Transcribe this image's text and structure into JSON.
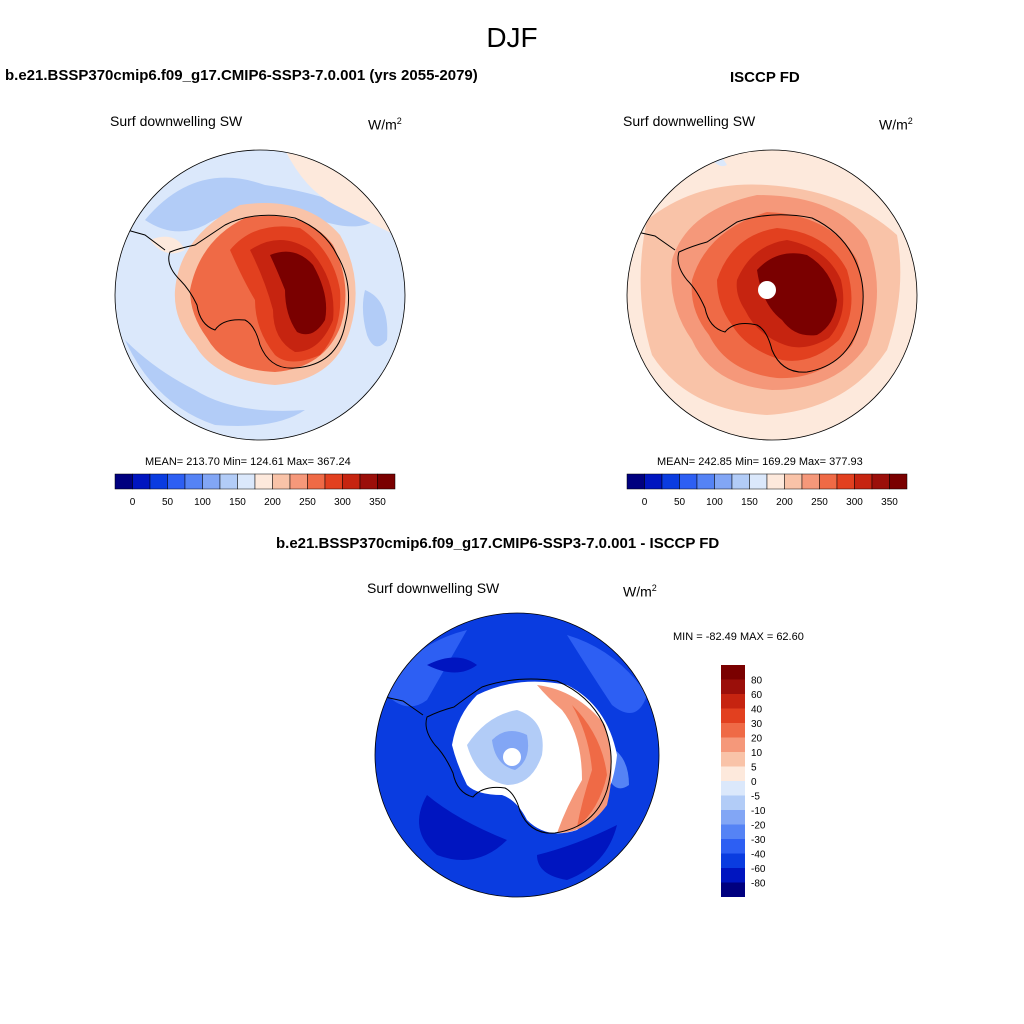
{
  "figure": {
    "title": "DJF"
  },
  "colors": {
    "scale": [
      "#00007f",
      "#0015c0",
      "#0a3ce0",
      "#2d5ff3",
      "#5583f5",
      "#82a6f5",
      "#b2ccf7",
      "#dbe8fb",
      "#fde9dc",
      "#f9c3a8",
      "#f5987a",
      "#ef6a46",
      "#e2401f",
      "#c62410",
      "#9b0f0a",
      "#7a0000"
    ]
  },
  "chart_data": [
    {
      "type": "map",
      "panel": "model",
      "title": "b.e21.BSSP370cmip6.f09_g17.CMIP6-SSP3-7.0.001 (yrs 2055-2079)",
      "variable": "Surf downwelling SW",
      "units_base": "W/m",
      "units_exp": "2",
      "stats_text": "MEAN= 213.70  Min= 124.61  Max= 367.24",
      "mean": 213.7,
      "min": 124.61,
      "max": 367.24,
      "colorbar_ticks": [
        "0",
        "50",
        "100",
        "150",
        "200",
        "250",
        "300",
        "350"
      ],
      "levels": [
        0,
        25,
        50,
        75,
        100,
        125,
        150,
        175,
        200,
        225,
        250,
        275,
        300,
        325,
        350
      ]
    },
    {
      "type": "map",
      "panel": "obs",
      "title": "ISCCP FD",
      "variable": "Surf downwelling SW",
      "units_base": "W/m",
      "units_exp": "2",
      "stats_text": "MEAN= 242.85  Min= 169.29  Max= 377.93",
      "mean": 242.85,
      "min": 169.29,
      "max": 377.93,
      "colorbar_ticks": [
        "0",
        "50",
        "100",
        "150",
        "200",
        "250",
        "300",
        "350"
      ],
      "levels": [
        0,
        25,
        50,
        75,
        100,
        125,
        150,
        175,
        200,
        225,
        250,
        275,
        300,
        325,
        350
      ]
    },
    {
      "type": "map",
      "panel": "difference",
      "title": "b.e21.BSSP370cmip6.f09_g17.CMIP6-SSP3-7.0.001 - ISCCP FD",
      "variable": "Surf downwelling SW",
      "units_base": "W/m",
      "units_exp": "2",
      "stats_text": "MIN = -82.49 MAX =  62.60",
      "min": -82.49,
      "max": 62.6,
      "colorbar_ticks": [
        "80",
        "60",
        "40",
        "30",
        "20",
        "10",
        "5",
        "0",
        "-5",
        "-10",
        "-20",
        "-30",
        "-40",
        "-60",
        "-80"
      ],
      "levels": [
        -80,
        -60,
        -40,
        -30,
        -20,
        -10,
        -5,
        0,
        5,
        10,
        20,
        30,
        40,
        60,
        80
      ]
    }
  ]
}
